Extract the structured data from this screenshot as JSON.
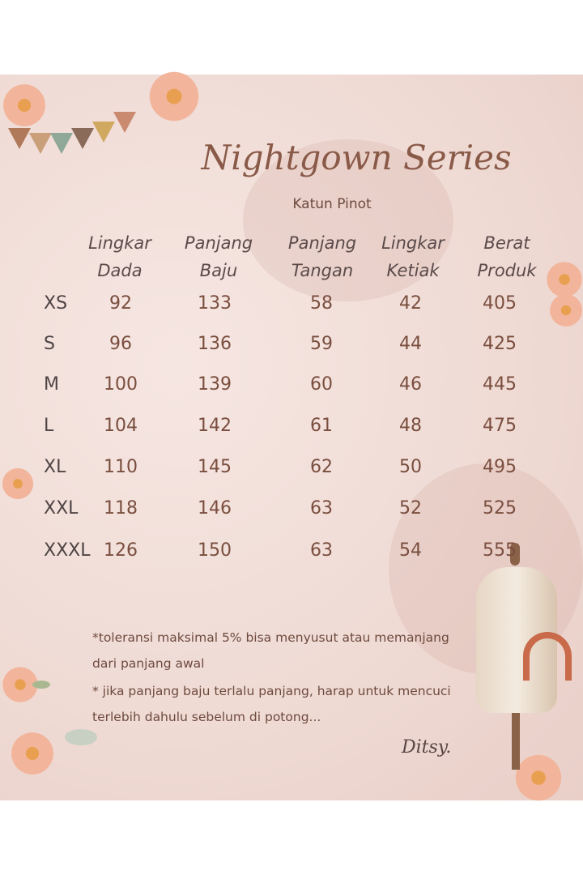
{
  "title": "Nightgown Series",
  "subtitle": "Katun Pinot",
  "columns": [
    {
      "line1": "Lingkar",
      "line2": "Dada"
    },
    {
      "line1": "Panjang",
      "line2": "Baju"
    },
    {
      "line1": "Panjang",
      "line2": "Tangan"
    },
    {
      "line1": "Lingkar",
      "line2": "Ketiak"
    },
    {
      "line1": "Berat",
      "line2": "Produk"
    }
  ],
  "rows": [
    {
      "size": "XS",
      "values": [
        "92",
        "133",
        "58",
        "42",
        "405"
      ]
    },
    {
      "size": "S",
      "values": [
        "96",
        "136",
        "59",
        "44",
        "425"
      ]
    },
    {
      "size": "M",
      "values": [
        "100",
        "139",
        "60",
        "46",
        "445"
      ]
    },
    {
      "size": "L",
      "values": [
        "104",
        "142",
        "61",
        "48",
        "475"
      ]
    },
    {
      "size": "XL",
      "values": [
        "110",
        "145",
        "62",
        "50",
        "495"
      ]
    },
    {
      "size": "XXL",
      "values": [
        "118",
        "146",
        "63",
        "52",
        "525"
      ]
    },
    {
      "size": "XXXL",
      "values": [
        "126",
        "150",
        "63",
        "54",
        "555"
      ]
    }
  ],
  "notes": [
    "*toleransi  maksimal 5% bisa menyusut atau memanjang",
    "dari panjang awal",
    "* jika panjang baju terlalu panjang, harap  untuk mencuci",
    "terlebih dahulu sebelum di potong..."
  ],
  "signature": "Ditsy.",
  "colors": {
    "text_brown": "#7a4e3e",
    "text_gray": "#4e4444",
    "background": "#f0dcd6"
  }
}
